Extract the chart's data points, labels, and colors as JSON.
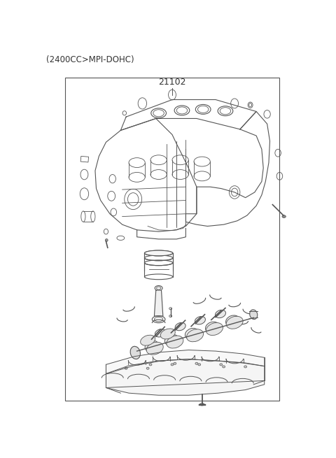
{
  "title_top_left": "(2400CC>MPI-DOHC)",
  "part_number": "21102",
  "background_color": "#ffffff",
  "border_color": "#555555",
  "line_color": "#555555",
  "text_color": "#333333",
  "fig_width": 4.8,
  "fig_height": 6.55,
  "dpi": 100,
  "title_fontsize": 8.5,
  "part_number_fontsize": 9
}
